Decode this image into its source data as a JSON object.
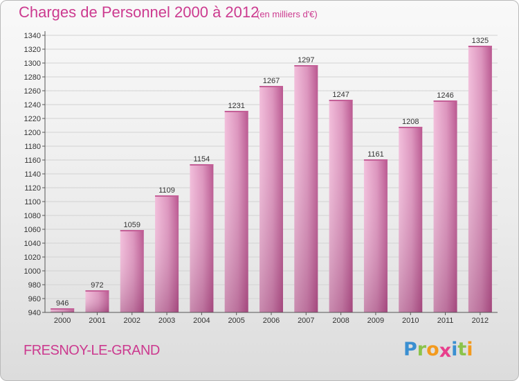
{
  "header": {
    "title": "Charges de Personnel 2000 à 2012",
    "subtitle": "(en milliers d'€)"
  },
  "footer": {
    "city": "FRESNOY-LE-GRAND",
    "brand_letters": [
      {
        "char": "P",
        "color": "#3a8fd1"
      },
      {
        "char": "r",
        "color": "#8bc34a"
      },
      {
        "char": "o",
        "color": "#f39a1e"
      },
      {
        "char": "x",
        "color": "#e83e8c"
      },
      {
        "char": "i",
        "color": "#3a8fd1"
      },
      {
        "char": "t",
        "color": "#8bc34a"
      },
      {
        "char": "i",
        "color": "#f39a1e"
      }
    ]
  },
  "chart_data": {
    "type": "bar",
    "title": "Charges de Personnel 2000 à 2012",
    "subtitle": "(en milliers d'€)",
    "categories": [
      "2000",
      "2001",
      "2002",
      "2003",
      "2004",
      "2005",
      "2006",
      "2007",
      "2008",
      "2009",
      "2010",
      "2011",
      "2012"
    ],
    "values": [
      946,
      972,
      1059,
      1109,
      1154,
      1231,
      1267,
      1297,
      1247,
      1161,
      1208,
      1246,
      1325
    ],
    "ylim": [
      940,
      1340
    ],
    "ytick_step": 20,
    "grid": true,
    "bar_color": "#d986b4",
    "xlabel": "",
    "ylabel": ""
  }
}
